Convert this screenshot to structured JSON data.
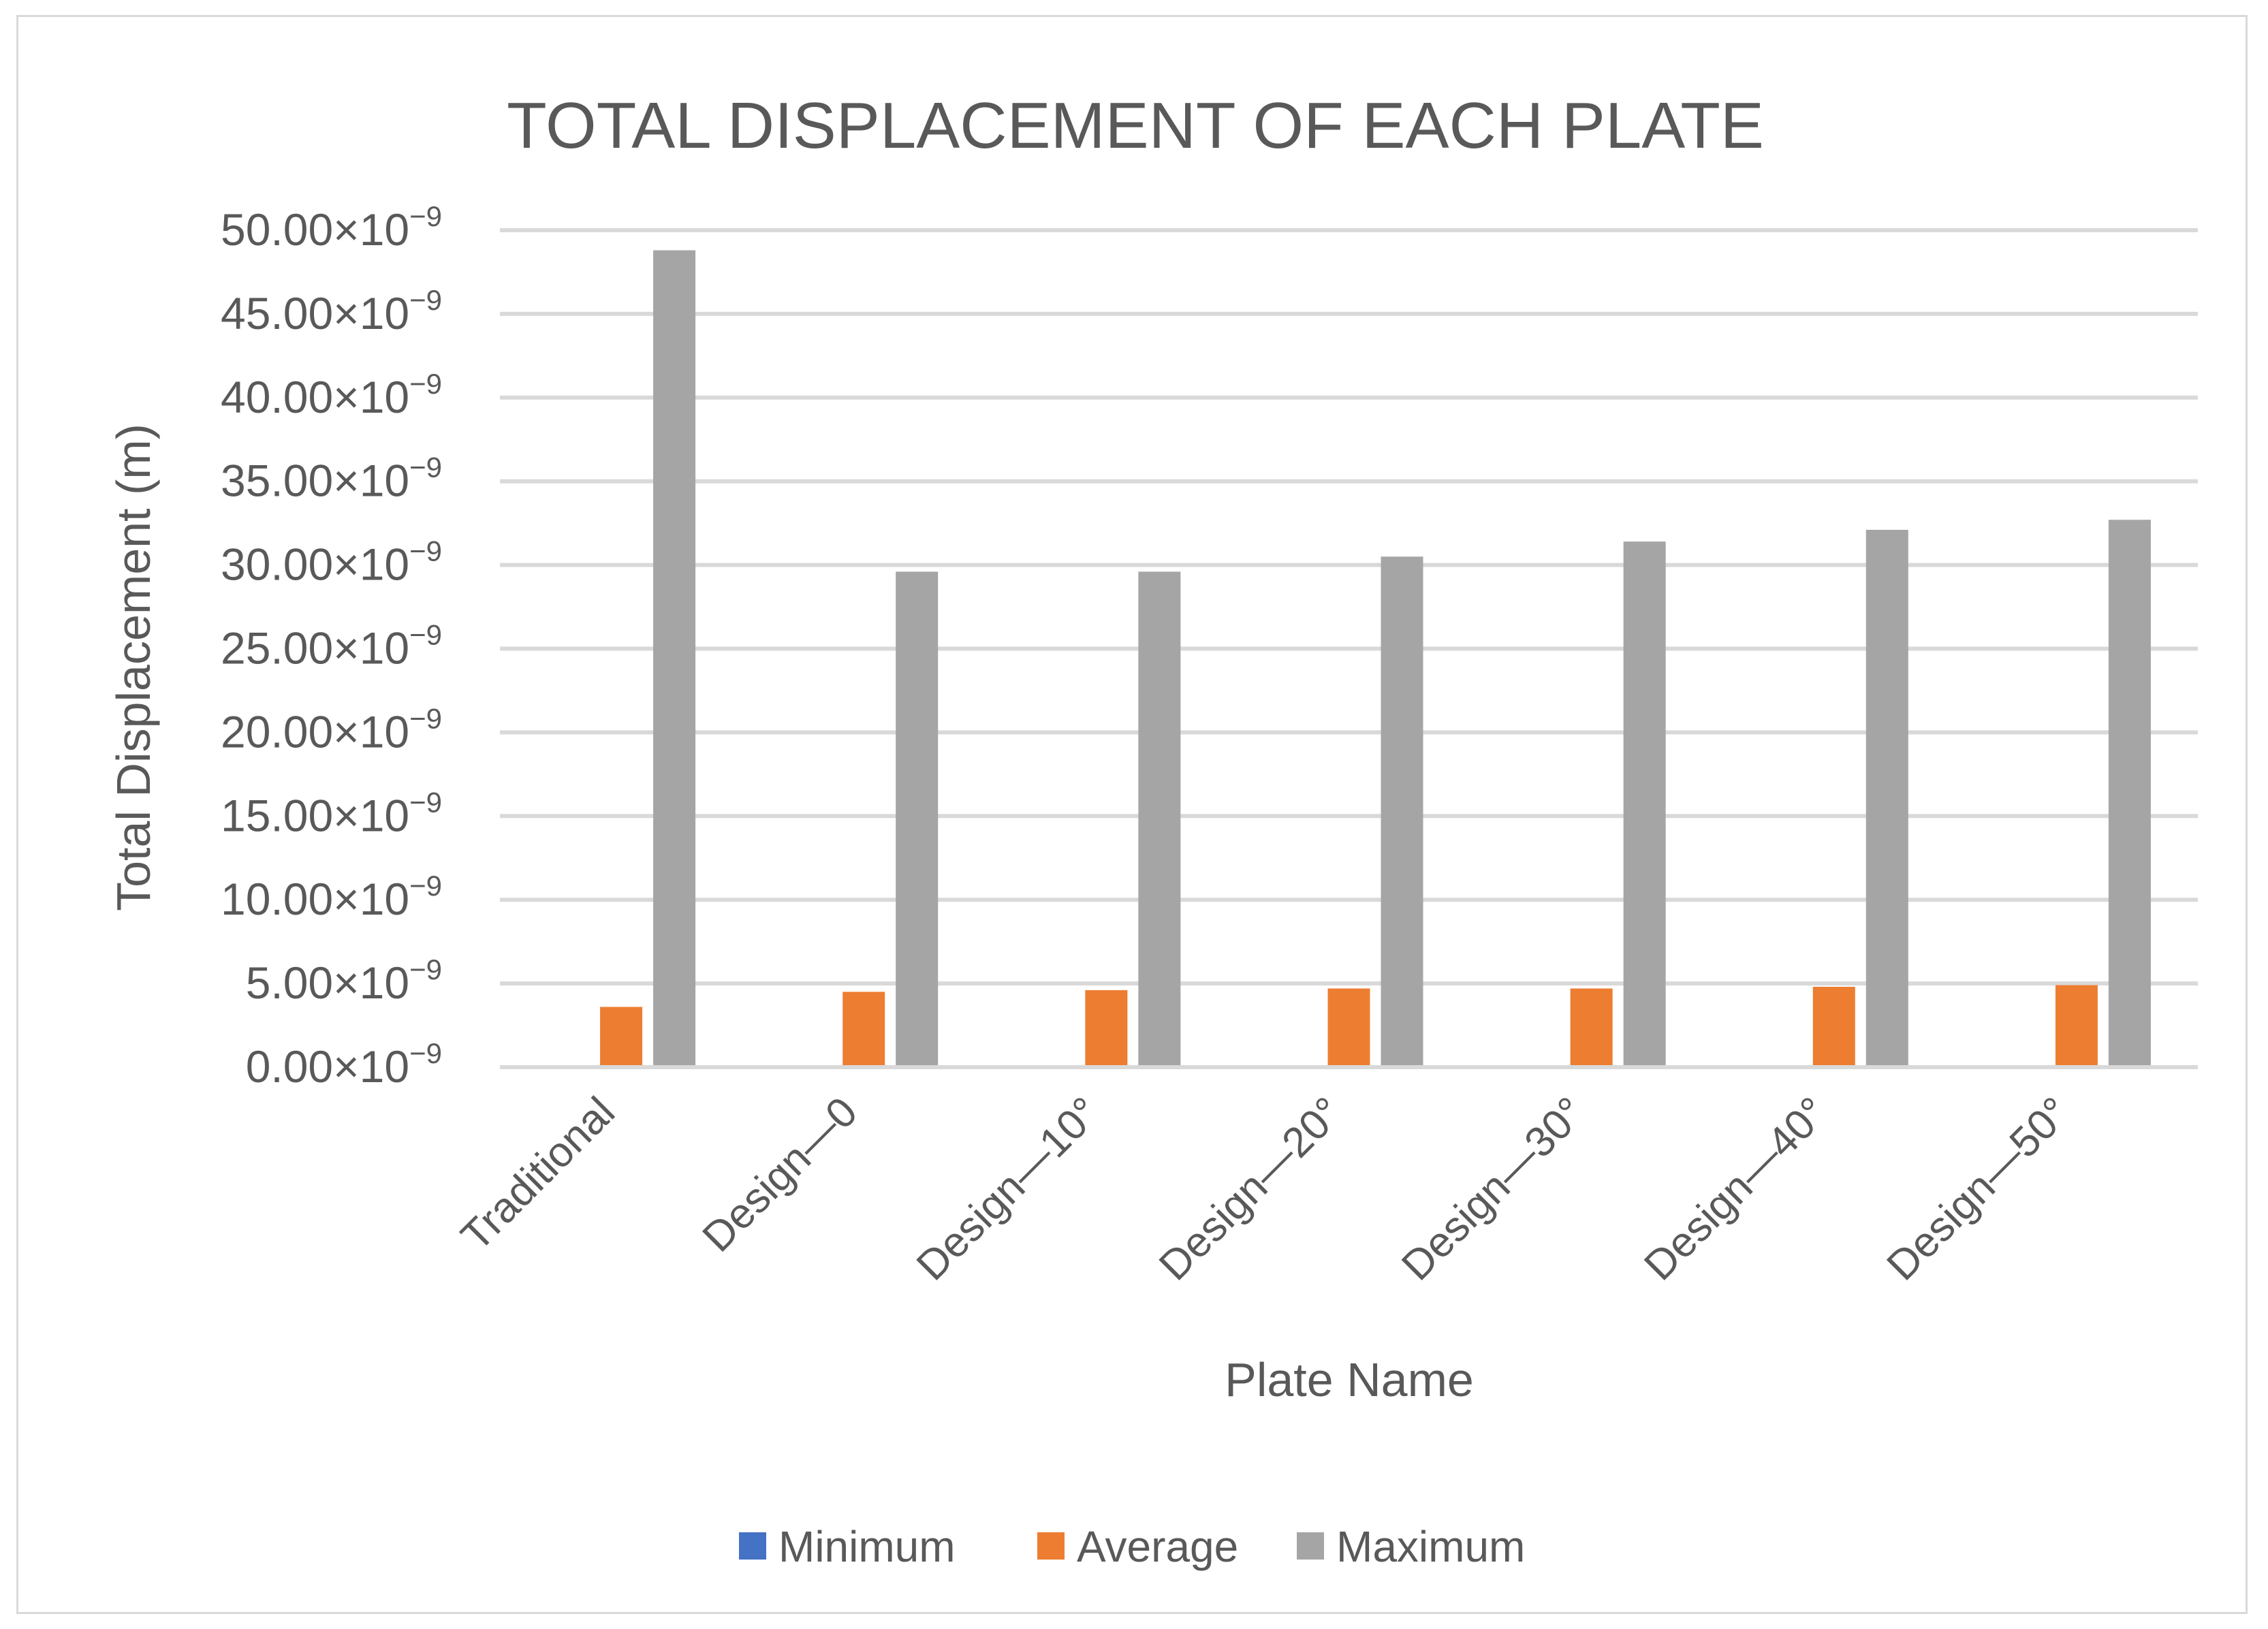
{
  "chart_data": {
    "type": "bar",
    "title": "TOTAL DISPLACEMENT OF EACH PLATE",
    "xlabel": "Plate Name",
    "ylabel": "Total Displacement (m)",
    "y_tick_exponent": "−9",
    "y_ticks": [
      {
        "value": 0,
        "label": "0.00×10"
      },
      {
        "value": 5,
        "label": "5.00×10"
      },
      {
        "value": 10,
        "label": "10.00×10"
      },
      {
        "value": 15,
        "label": "15.00×10"
      },
      {
        "value": 20,
        "label": "20.00×10"
      },
      {
        "value": 25,
        "label": "25.00×10"
      },
      {
        "value": 30,
        "label": "30.00×10"
      },
      {
        "value": 35,
        "label": "35.00×10"
      },
      {
        "value": 40,
        "label": "40.00×10"
      },
      {
        "value": 45,
        "label": "45.00×10"
      },
      {
        "value": 50,
        "label": "50.00×10"
      }
    ],
    "ylim": [
      0,
      50
    ],
    "unit_scale": "1e-9",
    "grid": true,
    "legend_position": "bottom",
    "categories": [
      "Traditional",
      "Design—0",
      "Design—10°",
      "Design—20°",
      "Design—30°",
      "Design—40°",
      "Design—50°"
    ],
    "series": [
      {
        "name": "Minimum",
        "color": "#4472c4",
        "values": [
          0,
          0,
          0,
          0,
          0,
          0,
          0
        ]
      },
      {
        "name": "Average",
        "color": "#ed7d31",
        "values": [
          3.6,
          4.5,
          4.6,
          4.7,
          4.7,
          4.8,
          4.9
        ]
      },
      {
        "name": "Maximum",
        "color": "#a5a5a5",
        "values": [
          48.8,
          29.6,
          29.6,
          30.5,
          31.4,
          32.1,
          32.7
        ]
      }
    ]
  }
}
